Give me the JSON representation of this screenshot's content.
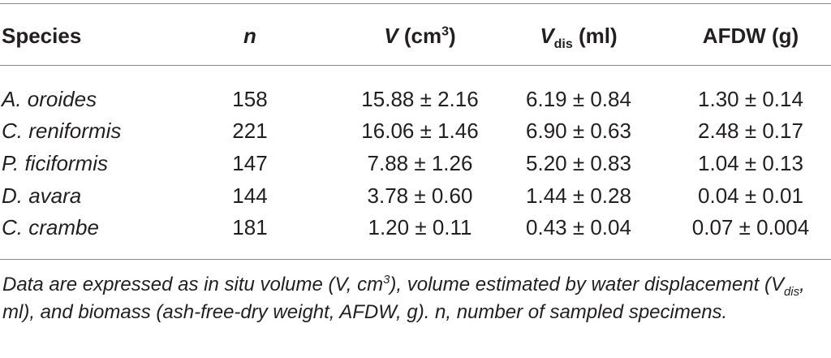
{
  "table": {
    "header": {
      "species": "Species",
      "n": "n",
      "v_symbol": "V",
      "v_unit_open": " (cm",
      "v_unit_exp": "3",
      "v_unit_close": ")",
      "vdis_symbol": "V",
      "vdis_sub": "dis",
      "vdis_unit": " (ml)",
      "afdw": "AFDW (g)"
    },
    "rows": [
      {
        "species": "A. oroides",
        "n": "158",
        "v": "15.88 ± 2.16",
        "vdis": "6.19 ± 0.84",
        "afdw": "1.30 ± 0.14"
      },
      {
        "species": "C. reniformis",
        "n": "221",
        "v": "16.06 ± 1.46",
        "vdis": "6.90 ± 0.63",
        "afdw": "2.48 ± 0.17"
      },
      {
        "species": "P. ficiformis",
        "n": "147",
        "v": "7.88 ± 1.26",
        "vdis": "5.20 ± 0.83",
        "afdw": "1.04 ± 0.13"
      },
      {
        "species": "D. avara",
        "n": "144",
        "v": "3.78 ± 0.60",
        "vdis": "1.44 ± 0.28",
        "afdw": "0.04 ± 0.01"
      },
      {
        "species": "C. crambe",
        "n": "181",
        "v": "1.20 ± 0.11",
        "vdis": "0.43 ± 0.04",
        "afdw": "0.07 ± 0.004"
      }
    ]
  },
  "footnote": {
    "part1": "Data are expressed as in situ volume (V, cm",
    "part1_exp": "3",
    "part2": "), volume estimated by water displacement (V",
    "part2_sub": "dis",
    "part3": ", ml), and biomass (ash-free-dry weight, AFDW, g). n, number of sampled specimens."
  }
}
